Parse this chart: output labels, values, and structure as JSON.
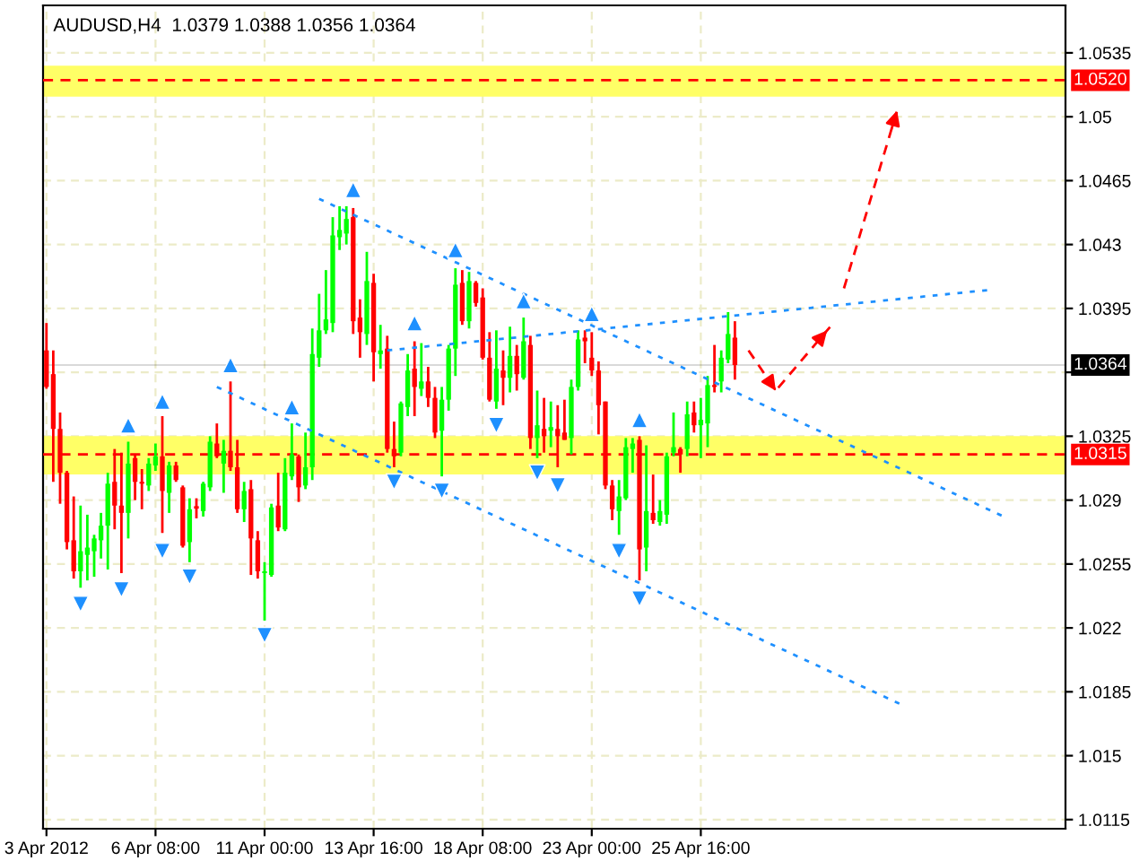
{
  "chart_data": {
    "type": "candlestick",
    "title": "AUDUSD,H4  1.0379 1.0388 1.0356 1.0364",
    "categories": [
      "3 Apr 2012",
      null,
      null,
      null,
      null,
      null,
      null,
      null,
      null,
      null,
      null,
      null,
      null,
      null,
      null,
      null,
      "6 Apr 08:00",
      null,
      null,
      null,
      null,
      null,
      null,
      null,
      null,
      null,
      null,
      null,
      null,
      null,
      null,
      null,
      "11 Apr 00:00",
      null,
      null,
      null,
      null,
      null,
      null,
      null,
      null,
      null,
      null,
      null,
      null,
      null,
      null,
      null,
      "13 Apr 16:00",
      null,
      null,
      null,
      null,
      null,
      null,
      null,
      null,
      null,
      null,
      null,
      null,
      null,
      null,
      null,
      "18 Apr 08:00",
      null,
      null,
      null,
      null,
      null,
      null,
      null,
      null,
      null,
      null,
      null,
      null,
      null,
      null,
      null,
      "23 Apr 00:00",
      null,
      null,
      null,
      null,
      null,
      null,
      null,
      null,
      null,
      null,
      null,
      null,
      null,
      null,
      null,
      "25 Apr 16:00",
      null,
      null,
      null,
      null,
      null,
      null,
      null,
      null,
      null,
      null,
      null,
      null,
      null,
      null,
      null,
      null,
      null,
      null,
      null,
      null,
      null,
      null,
      null,
      null,
      null,
      null,
      null,
      null,
      null,
      null,
      null,
      null,
      null,
      null,
      null,
      null,
      null,
      null,
      null,
      null,
      null,
      null,
      null,
      null,
      null,
      null,
      null,
      null,
      null,
      null,
      null,
      null,
      null
    ],
    "ohlc": [
      [
        1.0372,
        1.0387,
        1.0351,
        1.0352
      ],
      [
        1.0359,
        1.0372,
        1.03,
        1.0329
      ],
      [
        1.0329,
        1.0338,
        1.0288,
        1.0305
      ],
      [
        1.0305,
        1.0306,
        1.0263,
        1.0267
      ],
      [
        1.0268,
        1.0292,
        1.0247,
        1.0251
      ],
      [
        1.0251,
        1.0287,
        1.0242,
        1.0262
      ],
      [
        1.026,
        1.0282,
        1.0246,
        1.0264
      ],
      [
        1.0262,
        1.0271,
        1.0248,
        1.0269
      ],
      [
        1.0268,
        1.0283,
        1.0258,
        1.0276
      ],
      [
        1.0276,
        1.0305,
        1.0252,
        1.0299
      ],
      [
        1.03,
        1.0318,
        1.0274,
        1.0287
      ],
      [
        1.0287,
        1.0316,
        1.025,
        1.0283
      ],
      [
        1.0283,
        1.0322,
        1.0269,
        1.031
      ],
      [
        1.0313,
        1.0315,
        1.029,
        1.03
      ],
      [
        1.03,
        1.0307,
        1.0285,
        1.0299
      ],
      [
        1.0298,
        1.0313,
        1.0295,
        1.031
      ],
      [
        1.0309,
        1.0321,
        1.0306,
        1.0314
      ],
      [
        1.0314,
        1.0336,
        1.0272,
        1.0295
      ],
      [
        1.0294,
        1.0311,
        1.0283,
        1.0309
      ],
      [
        1.0309,
        1.0311,
        1.03,
        1.0301
      ],
      [
        1.0297,
        1.0298,
        1.0264,
        1.0265
      ],
      [
        1.0267,
        1.0291,
        1.0256,
        1.0285
      ],
      [
        1.0286,
        1.0291,
        1.028,
        1.0286
      ],
      [
        1.0284,
        1.03,
        1.0281,
        1.0299
      ],
      [
        1.0297,
        1.0325,
        1.0295,
        1.0322
      ],
      [
        1.0321,
        1.0332,
        1.0313,
        1.0314
      ],
      [
        1.031,
        1.0323,
        1.0294,
        1.0317
      ],
      [
        1.0317,
        1.0355,
        1.0306,
        1.0308
      ],
      [
        1.0308,
        1.0323,
        1.0283,
        1.0285
      ],
      [
        1.0285,
        1.03,
        1.0278,
        1.0295
      ],
      [
        1.0296,
        1.0301,
        1.0249,
        1.0269
      ],
      [
        1.0268,
        1.0273,
        1.0247,
        1.0251
      ],
      [
        1.025,
        1.0256,
        1.0224,
        1.0251
      ],
      [
        1.0249,
        1.0288,
        1.0248,
        1.0286
      ],
      [
        1.0287,
        1.0305,
        1.0273,
        1.0275
      ],
      [
        1.0274,
        1.0313,
        1.0273,
        1.0305
      ],
      [
        1.0303,
        1.0332,
        1.0301,
        1.0315
      ],
      [
        1.0314,
        1.0315,
        1.0289,
        1.0297
      ],
      [
        1.0298,
        1.0327,
        1.0296,
        1.0308
      ],
      [
        1.0308,
        1.0384,
        1.0301,
        1.037
      ],
      [
        1.0368,
        1.0403,
        1.0363,
        1.0383
      ],
      [
        1.0383,
        1.0416,
        1.0381,
        1.0389
      ],
      [
        1.0387,
        1.0445,
        1.0382,
        1.0435
      ],
      [
        1.0434,
        1.0451,
        1.0427,
        1.0438
      ],
      [
        1.0436,
        1.0451,
        1.043,
        1.0444
      ],
      [
        1.0445,
        1.045,
        1.0381,
        1.0388
      ],
      [
        1.039,
        1.04,
        1.0368,
        1.0382
      ],
      [
        1.0381,
        1.0426,
        1.0375,
        1.041
      ],
      [
        1.0409,
        1.0414,
        1.0355,
        1.0371
      ],
      [
        1.037,
        1.0386,
        1.0362,
        1.0372
      ],
      [
        1.0373,
        1.038,
        1.0316,
        1.0318
      ],
      [
        1.0318,
        1.0333,
        1.0308,
        1.0314
      ],
      [
        1.0316,
        1.0344,
        1.0314,
        1.0343
      ],
      [
        1.0341,
        1.037,
        1.0336,
        1.0361
      ],
      [
        1.0362,
        1.0377,
        1.0336,
        1.0352
      ],
      [
        1.0351,
        1.0376,
        1.0347,
        1.0355
      ],
      [
        1.0355,
        1.0363,
        1.0341,
        1.0346
      ],
      [
        1.0346,
        1.0352,
        1.0324,
        1.0327
      ],
      [
        1.0328,
        1.0352,
        1.0303,
        1.0345
      ],
      [
        1.0345,
        1.0375,
        1.0339,
        1.0373
      ],
      [
        1.0373,
        1.0417,
        1.0358,
        1.0408
      ],
      [
        1.0409,
        1.0416,
        1.0386,
        1.0388
      ],
      [
        1.0388,
        1.0415,
        1.0384,
        1.041
      ],
      [
        1.0409,
        1.041,
        1.0396,
        1.0398
      ],
      [
        1.0401,
        1.0406,
        1.0367,
        1.0368
      ],
      [
        1.0368,
        1.0382,
        1.0344,
        1.0345
      ],
      [
        1.0344,
        1.0383,
        1.034,
        1.0362
      ],
      [
        1.0361,
        1.0372,
        1.0342,
        1.0357
      ],
      [
        1.0357,
        1.0385,
        1.0349,
        1.0369
      ],
      [
        1.0369,
        1.0375,
        1.035,
        1.0359
      ],
      [
        1.0357,
        1.039,
        1.0356,
        1.0377
      ],
      [
        1.0375,
        1.038,
        1.0318,
        1.0324
      ],
      [
        1.0324,
        1.035,
        1.0313,
        1.0331
      ],
      [
        1.0329,
        1.0346,
        1.0316,
        1.0325
      ],
      [
        1.0328,
        1.0344,
        1.0319,
        1.033
      ],
      [
        1.0329,
        1.0342,
        1.0308,
        1.0325
      ],
      [
        1.0327,
        1.0345,
        1.0323,
        1.0323
      ],
      [
        1.0324,
        1.0356,
        1.0315,
        1.0352
      ],
      [
        1.0352,
        1.0383,
        1.035,
        1.0378
      ],
      [
        1.0379,
        1.0383,
        1.0365,
        1.0377
      ],
      [
        1.0368,
        1.0382,
        1.0358,
        1.0361
      ],
      [
        1.0361,
        1.0366,
        1.0326,
        1.0342
      ],
      [
        1.0344,
        1.0344,
        1.0296,
        1.0298
      ],
      [
        1.0298,
        1.0301,
        1.0279,
        1.0285
      ],
      [
        1.0284,
        1.0301,
        1.0271,
        1.0292
      ],
      [
        1.0291,
        1.0324,
        1.029,
        1.0319
      ],
      [
        1.0318,
        1.0324,
        1.0305,
        1.0321
      ],
      [
        1.0323,
        1.0325,
        1.0246,
        1.0263
      ],
      [
        1.0264,
        1.032,
        1.0251,
        1.0284
      ],
      [
        1.0283,
        1.0304,
        1.0277,
        1.0279
      ],
      [
        1.0278,
        1.029,
        1.0276,
        1.0284
      ],
      [
        1.0282,
        1.0316,
        1.0277,
        1.0314
      ],
      [
        1.0316,
        1.0338,
        1.0314,
        1.0319
      ],
      [
        1.0318,
        1.0319,
        1.0305,
        1.0315
      ],
      [
        1.0318,
        1.0344,
        1.0314,
        1.0337
      ],
      [
        1.0338,
        1.0344,
        1.0327,
        1.0331
      ],
      [
        1.0331,
        1.0346,
        1.0313,
        1.0334
      ],
      [
        1.0332,
        1.0358,
        1.0319,
        1.0353
      ],
      [
        1.0353,
        1.0375,
        1.0349,
        1.0352
      ],
      [
        1.0355,
        1.0372,
        1.0349,
        1.0368
      ],
      [
        1.0367,
        1.0393,
        1.0365,
        1.0381
      ],
      [
        1.0379,
        1.0388,
        1.0356,
        1.0364
      ],
      null,
      null,
      null,
      null,
      null,
      null,
      null,
      null,
      null,
      null,
      null,
      null,
      null,
      null,
      null,
      null,
      null,
      null,
      null,
      null,
      null,
      null,
      null,
      null,
      null,
      null,
      null,
      null,
      null,
      null,
      null,
      null,
      null,
      null,
      null,
      null,
      null,
      null,
      null,
      null,
      null,
      null,
      null,
      null,
      null,
      null,
      null,
      null
    ],
    "colors": [
      "#ff0000",
      "#ff0000",
      "#ff0000",
      "#ff0000",
      "#ff0000",
      "#00ff00",
      "#00ff00",
      "#00ff00",
      "#00ff00",
      "#00ff00",
      "#ff0000",
      "#ff0000",
      "#00ff00",
      "#ff0000",
      "#ff0000",
      "#00ff00",
      "#00ff00",
      "#ff0000",
      "#00ff00",
      "#ff0000",
      "#ff0000",
      "#00ff00",
      "#ff0000",
      "#00ff00",
      "#00ff00",
      "#ff0000",
      "#00ff00",
      "#ff0000",
      "#ff0000",
      "#00ff00",
      "#ff0000",
      "#ff0000",
      "#00ff00",
      "#00ff00",
      "#ff0000",
      "#00ff00",
      "#00ff00",
      "#ff0000",
      "#00ff00",
      "#00ff00",
      "#00ff00",
      "#00ff00",
      "#00ff00",
      "#00ff00",
      "#00ff00",
      "#ff0000",
      "#ff0000",
      "#00ff00",
      "#ff0000",
      "#00ff00",
      "#ff0000",
      "#ff0000",
      "#00ff00",
      "#00ff00",
      "#ff0000",
      "#00ff00",
      "#ff0000",
      "#ff0000",
      "#00ff00",
      "#00ff00",
      "#00ff00",
      "#ff0000",
      "#00ff00",
      "#ff0000",
      "#ff0000",
      "#ff0000",
      "#00ff00",
      "#ff0000",
      "#00ff00",
      "#ff0000",
      "#00ff00",
      "#ff0000",
      "#00ff00",
      "#ff0000",
      "#00ff00",
      "#ff0000",
      "#ff0000",
      "#00ff00",
      "#00ff00",
      "#ff0000",
      "#ff0000",
      "#ff0000",
      "#ff0000",
      "#ff0000",
      "#00ff00",
      "#00ff00",
      "#00ff00",
      "#ff0000",
      "#00ff00",
      "#ff0000",
      "#00ff00",
      "#00ff00",
      "#00ff00",
      "#ff0000",
      "#00ff00",
      "#ff0000",
      "#00ff00",
      "#00ff00",
      "#ff0000",
      "#00ff00",
      "#00ff00",
      "#ff0000",
      null,
      null,
      null,
      null,
      null,
      null,
      null,
      null,
      null,
      null,
      null,
      null,
      null,
      null,
      null,
      null,
      null,
      null,
      null,
      null,
      null,
      null,
      null,
      null,
      null,
      null,
      null,
      null,
      null,
      null,
      null,
      null,
      null,
      null,
      null,
      null,
      null,
      null,
      null,
      null,
      null,
      null,
      null,
      null,
      null,
      null,
      null,
      null
    ],
    "series": [
      {
        "type": "line",
        "color": "#1e90ff",
        "line_style": "dotted",
        "values": [
          null,
          null,
          null,
          null,
          null,
          null,
          null,
          null,
          null,
          null,
          null,
          null,
          null,
          null,
          null,
          null,
          null,
          null,
          null,
          null,
          null,
          null,
          null,
          null,
          null,
          null,
          null,
          null,
          null,
          null,
          null,
          null,
          null,
          null,
          null,
          null,
          null,
          null,
          null,
          null,
          1.0455,
          null,
          null,
          null,
          null,
          null,
          null,
          null,
          null,
          null,
          null,
          null,
          null,
          null,
          null,
          null,
          null,
          null,
          null,
          null,
          null,
          null,
          null,
          null,
          null,
          null,
          null,
          null,
          null,
          null,
          null,
          null,
          null,
          null,
          null,
          null,
          null,
          null,
          null,
          null,
          null,
          null,
          null,
          null,
          null,
          null,
          null,
          null,
          null,
          null,
          null,
          null,
          null,
          null,
          null,
          null,
          null,
          null,
          null,
          null,
          null,
          null,
          null,
          null,
          null,
          null,
          null,
          null,
          null,
          null,
          null,
          null,
          null,
          null,
          null,
          null,
          null,
          null,
          null,
          null,
          null,
          null,
          null,
          null,
          null,
          null,
          null,
          null,
          null,
          null,
          null,
          null,
          null,
          null,
          null,
          null,
          null,
          null,
          null,
          null,
          null,
          1.028,
          null,
          null,
          null,
          null,
          null,
          null,
          null,
          null
        ]
      },
      {
        "type": "line",
        "color": "#1e90ff",
        "line_style": "dotted",
        "values": [
          null,
          null,
          null,
          null,
          null,
          null,
          null,
          null,
          null,
          null,
          null,
          null,
          null,
          null,
          null,
          null,
          null,
          null,
          null,
          null,
          null,
          null,
          null,
          null,
          null,
          1.0352,
          null,
          null,
          null,
          null,
          null,
          null,
          null,
          null,
          null,
          null,
          null,
          null,
          null,
          null,
          null,
          null,
          null,
          null,
          null,
          null,
          null,
          null,
          null,
          null,
          null,
          null,
          null,
          null,
          null,
          null,
          null,
          null,
          null,
          null,
          null,
          null,
          null,
          null,
          null,
          null,
          null,
          null,
          null,
          null,
          null,
          null,
          null,
          null,
          null,
          null,
          null,
          null,
          null,
          null,
          null,
          null,
          null,
          null,
          null,
          null,
          null,
          null,
          null,
          null,
          null,
          null,
          null,
          null,
          null,
          null,
          null,
          null,
          null,
          null,
          null,
          null,
          null,
          null,
          null,
          null,
          null,
          null,
          null,
          null,
          null,
          null,
          null,
          null,
          null,
          null,
          null,
          null,
          null,
          null,
          null,
          null,
          null,
          null,
          null,
          null,
          1.0177,
          null,
          null,
          null,
          null,
          null,
          null,
          null,
          null,
          null,
          null,
          null,
          null,
          null,
          null,
          null,
          null,
          null,
          null,
          null,
          null,
          null,
          null,
          null
        ]
      },
      {
        "type": "line",
        "color": "#1e90ff",
        "line_style": "dotted",
        "values": [
          null,
          null,
          null,
          null,
          null,
          null,
          null,
          null,
          null,
          null,
          null,
          null,
          null,
          null,
          null,
          null,
          null,
          null,
          null,
          null,
          null,
          null,
          null,
          null,
          null,
          null,
          null,
          null,
          null,
          null,
          null,
          null,
          null,
          null,
          null,
          null,
          null,
          null,
          null,
          null,
          null,
          null,
          null,
          null,
          null,
          null,
          null,
          null,
          null,
          null,
          1.0372,
          null,
          null,
          null,
          null,
          null,
          null,
          null,
          null,
          null,
          null,
          null,
          null,
          null,
          null,
          null,
          null,
          null,
          null,
          null,
          null,
          null,
          null,
          null,
          null,
          null,
          null,
          null,
          null,
          null,
          null,
          null,
          null,
          null,
          null,
          null,
          null,
          null,
          null,
          null,
          null,
          null,
          null,
          null,
          null,
          null,
          null,
          null,
          null,
          null,
          null,
          null,
          null,
          null,
          null,
          null,
          null,
          null,
          null,
          null,
          null,
          null,
          null,
          null,
          null,
          null,
          null,
          null,
          null,
          null,
          null,
          null,
          null,
          null,
          null,
          null,
          null,
          null,
          null,
          null,
          null,
          null,
          null,
          null,
          null,
          null,
          null,
          null,
          1.0405,
          null,
          null,
          null,
          null,
          null,
          null,
          null,
          null,
          null,
          null,
          null
        ]
      },
      {
        "type": "line",
        "color": "#ff0000",
        "line_style": "dashed",
        "values": [
          null,
          null,
          null,
          null,
          null,
          null,
          null,
          null,
          null,
          null,
          null,
          null,
          null,
          null,
          null,
          null,
          null,
          null,
          null,
          null,
          null,
          null,
          null,
          null,
          null,
          null,
          null,
          null,
          null,
          null,
          null,
          null,
          null,
          null,
          null,
          null,
          null,
          null,
          null,
          null,
          null,
          null,
          null,
          null,
          null,
          null,
          null,
          null,
          null,
          null,
          null,
          null,
          null,
          null,
          null,
          null,
          null,
          null,
          null,
          null,
          null,
          null,
          null,
          null,
          null,
          null,
          null,
          null,
          null,
          null,
          null,
          null,
          null,
          null,
          null,
          null,
          null,
          null,
          null,
          null,
          null,
          null,
          null,
          null,
          null,
          null,
          null,
          null,
          null,
          null,
          null,
          null,
          null,
          null,
          null,
          null,
          null,
          null,
          null,
          null,
          null,
          null,
          null,
          1.0372,
          null,
          null,
          null,
          1.035,
          null,
          null,
          null,
          null,
          null,
          null,
          null,
          1.0385,
          null,
          null,
          null,
          null,
          null,
          null,
          null,
          null,
          null,
          null,
          null,
          null,
          null,
          null,
          null,
          null,
          null,
          null,
          null,
          null,
          null,
          null,
          null,
          null,
          null,
          null,
          null,
          null,
          null,
          null,
          null,
          null,
          null,
          null
        ]
      },
      {
        "type": "line",
        "color": "#ff0000",
        "line_style": "dashed",
        "values": [
          null,
          null,
          null,
          null,
          null,
          null,
          null,
          null,
          null,
          null,
          null,
          null,
          null,
          null,
          null,
          null,
          null,
          null,
          null,
          null,
          null,
          null,
          null,
          null,
          null,
          null,
          null,
          null,
          null,
          null,
          null,
          null,
          null,
          null,
          null,
          null,
          null,
          null,
          null,
          null,
          null,
          null,
          null,
          null,
          null,
          null,
          null,
          null,
          null,
          null,
          null,
          null,
          null,
          null,
          null,
          null,
          null,
          null,
          null,
          null,
          null,
          null,
          null,
          null,
          null,
          null,
          null,
          null,
          null,
          null,
          null,
          null,
          null,
          null,
          null,
          null,
          null,
          null,
          null,
          null,
          null,
          null,
          null,
          null,
          null,
          null,
          null,
          null,
          null,
          null,
          null,
          null,
          null,
          null,
          null,
          null,
          null,
          null,
          null,
          null,
          null,
          null,
          null,
          null,
          null,
          null,
          null,
          null,
          null,
          null,
          null,
          null,
          null,
          null,
          null,
          null,
          null,
          1.0406,
          null,
          null,
          null,
          null,
          null,
          null,
          null,
          1.0506,
          null,
          null,
          null,
          null,
          null,
          null,
          null,
          null,
          null,
          null,
          null,
          null,
          null,
          null,
          null,
          null,
          null,
          null,
          null,
          null,
          null,
          null,
          null,
          null
        ]
      },
      {
        "type": "scatter",
        "color": "#1e90ff",
        "marker": "triangle",
        "values": [
          null,
          null,
          null,
          null,
          null,
          null,
          null,
          null,
          null,
          null,
          null,
          null,
          1.0331,
          null,
          null,
          null,
          null,
          1.0344,
          null,
          null,
          null,
          null,
          null,
          null,
          null,
          null,
          null,
          1.0364,
          null,
          null,
          null,
          null,
          null,
          null,
          null,
          null,
          1.0341,
          null,
          null,
          null,
          null,
          null,
          null,
          null,
          null,
          1.046,
          null,
          null,
          null,
          null,
          null,
          null,
          null,
          null,
          1.0387,
          null,
          null,
          null,
          null,
          null,
          1.0427,
          null,
          null,
          null,
          null,
          null,
          null,
          null,
          null,
          null,
          1.0399,
          null,
          null,
          null,
          null,
          null,
          null,
          null,
          null,
          null,
          1.0392,
          null,
          null,
          null,
          null,
          null,
          null,
          1.0334,
          null,
          null,
          null,
          null,
          null,
          null,
          null,
          null,
          null,
          null,
          null,
          null,
          null,
          null,
          null,
          null,
          null,
          null,
          null,
          null,
          null,
          null,
          null,
          null,
          null,
          null,
          null,
          null,
          null,
          null,
          null,
          null,
          null,
          null,
          null,
          null,
          null,
          null,
          null,
          null,
          null,
          null,
          null,
          null,
          null,
          null,
          null,
          null,
          null,
          null,
          null,
          null,
          null,
          null,
          null,
          null,
          null,
          null,
          null,
          null,
          null,
          null
        ]
      },
      {
        "type": "scatter",
        "color": "#1e90ff",
        "marker": "triangle_down",
        "values": [
          null,
          null,
          null,
          null,
          null,
          1.0233,
          null,
          null,
          null,
          null,
          null,
          1.0241,
          null,
          null,
          null,
          null,
          null,
          1.0262,
          null,
          null,
          null,
          1.0248,
          null,
          null,
          null,
          null,
          null,
          null,
          null,
          null,
          null,
          null,
          1.0216,
          null,
          null,
          null,
          null,
          null,
          null,
          null,
          null,
          null,
          null,
          null,
          null,
          null,
          null,
          null,
          null,
          null,
          null,
          1.03,
          null,
          null,
          null,
          null,
          null,
          null,
          1.0295,
          null,
          null,
          null,
          null,
          null,
          null,
          null,
          1.0331,
          null,
          null,
          null,
          null,
          null,
          1.0305,
          null,
          null,
          1.0298,
          null,
          null,
          null,
          null,
          null,
          null,
          null,
          null,
          1.0262,
          null,
          null,
          1.0236,
          null,
          null,
          null,
          null,
          null,
          null,
          null,
          null,
          null,
          null,
          null,
          null,
          null,
          null,
          null,
          null,
          null,
          null,
          null,
          null,
          null,
          null,
          null,
          null,
          null,
          null,
          null,
          null,
          null,
          null,
          null,
          null,
          null,
          null,
          null,
          null,
          null,
          null,
          null,
          null,
          null,
          null,
          null,
          null,
          null,
          null,
          null,
          null,
          null,
          null,
          null,
          null,
          null,
          null,
          null,
          null,
          null,
          null,
          null,
          null,
          null,
          null
        ]
      }
    ],
    "ref_lines": [
      {
        "axis": "y",
        "value": 1.052,
        "label": "1.0520",
        "color": "#ff0000",
        "line_style": "dashed"
      },
      {
        "axis": "y",
        "value": 1.0315,
        "label": "1.0315",
        "color": "#ff0000",
        "line_style": "dashed"
      },
      {
        "axis": "y",
        "value": 1.0364,
        "label": "1.0364",
        "color": "#000000",
        "line_style": "solid"
      }
    ],
    "bands": [
      {
        "axis": "y",
        "from": 1.0511,
        "to": 1.0528,
        "color": "#ffff66"
      },
      {
        "axis": "y",
        "from": 1.0304,
        "to": 1.0325,
        "color": "#ffff66"
      }
    ],
    "ylim": [
      1.011,
      1.0561
    ],
    "yticks": [
      1.0115,
      1.015,
      1.0185,
      1.022,
      1.0255,
      1.029,
      1.0325,
      {
        "value": 1.036,
        "label": null
      },
      1.0395,
      1.043,
      1.0465,
      1.05,
      1.0535
    ],
    "grid": true,
    "legend": false
  }
}
